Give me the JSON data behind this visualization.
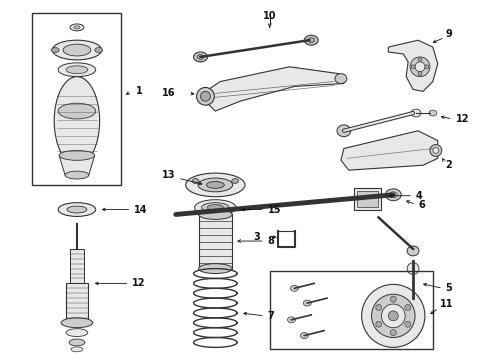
{
  "bg_color": "#ffffff",
  "fig_width": 4.9,
  "fig_height": 3.6,
  "dpi": 100,
  "line_color": "#333333",
  "arrow_color": "#111111",
  "text_color": "#111111",
  "fill_light": "#e8e8e8",
  "fill_mid": "#cccccc",
  "fill_dark": "#aaaaaa"
}
